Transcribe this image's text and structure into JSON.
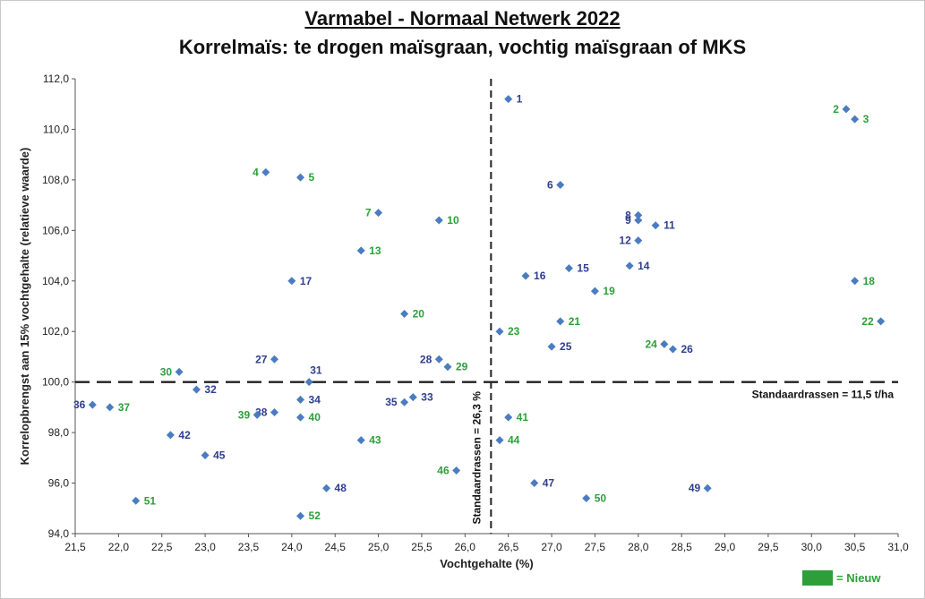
{
  "title": "Varmabel - Normaal Netwerk 2022",
  "subtitle": "Korrelmaïs: te drogen maïsgraan, vochtig maïsgraan of MKS",
  "legend": {
    "label": "= Nieuw",
    "color": "#2e9e3a"
  },
  "colors": {
    "marker": "#4a7cc0",
    "label_existing": "#2f3e8f",
    "label_new": "#2e9e3a",
    "refline": "#222222"
  },
  "annotations": {
    "yield_ref": "Standaardrassen = 11,5 t/ha",
    "moisture_ref": "Standaardrassen = 26,3 %"
  },
  "chart_data": {
    "type": "scatter",
    "xlabel": "Vochtgehalte (%)",
    "ylabel": "Korrelopbrengst aan 15% vochtgehalte (relatieve waarde)",
    "xlim": [
      21.5,
      31.0
    ],
    "ylim": [
      94.0,
      112.0
    ],
    "x_ticks": [
      "21,5",
      "22,0",
      "22,5",
      "23,0",
      "23,5",
      "24,0",
      "24,5",
      "25,0",
      "25,5",
      "26,0",
      "26,5",
      "27,0",
      "27,5",
      "28,0",
      "28,5",
      "29,0",
      "29,5",
      "30,0",
      "30,5",
      "31,0"
    ],
    "y_ticks": [
      "94,0",
      "96,0",
      "98,0",
      "100,0",
      "102,0",
      "104,0",
      "106,0",
      "108,0",
      "110,0",
      "112,0"
    ],
    "ref_x": 26.3,
    "ref_y": 100.0,
    "grid": false,
    "points": [
      {
        "label": "1",
        "x": 26.5,
        "y": 111.2,
        "new": false
      },
      {
        "label": "2",
        "x": 30.4,
        "y": 110.8,
        "new": true
      },
      {
        "label": "3",
        "x": 30.5,
        "y": 110.4,
        "new": true
      },
      {
        "label": "4",
        "x": 23.7,
        "y": 108.3,
        "new": true
      },
      {
        "label": "5",
        "x": 24.1,
        "y": 108.1,
        "new": true
      },
      {
        "label": "6",
        "x": 27.1,
        "y": 107.8,
        "new": false
      },
      {
        "label": "7",
        "x": 25.0,
        "y": 106.7,
        "new": true
      },
      {
        "label": "8",
        "x": 28.0,
        "y": 106.6,
        "new": false
      },
      {
        "label": "9",
        "x": 28.0,
        "y": 106.4,
        "new": false
      },
      {
        "label": "10",
        "x": 25.7,
        "y": 106.4,
        "new": true
      },
      {
        "label": "11",
        "x": 28.2,
        "y": 106.2,
        "new": false
      },
      {
        "label": "12",
        "x": 28.0,
        "y": 105.6,
        "new": false
      },
      {
        "label": "13",
        "x": 24.8,
        "y": 105.2,
        "new": true
      },
      {
        "label": "14",
        "x": 27.9,
        "y": 104.6,
        "new": false
      },
      {
        "label": "15",
        "x": 27.2,
        "y": 104.5,
        "new": false
      },
      {
        "label": "16",
        "x": 26.7,
        "y": 104.2,
        "new": false
      },
      {
        "label": "17",
        "x": 24.0,
        "y": 104.0,
        "new": false
      },
      {
        "label": "18",
        "x": 30.5,
        "y": 104.0,
        "new": true
      },
      {
        "label": "19",
        "x": 27.5,
        "y": 103.6,
        "new": true
      },
      {
        "label": "20",
        "x": 25.3,
        "y": 102.7,
        "new": true
      },
      {
        "label": "21",
        "x": 27.1,
        "y": 102.4,
        "new": true
      },
      {
        "label": "22",
        "x": 30.8,
        "y": 102.4,
        "new": true
      },
      {
        "label": "23",
        "x": 26.4,
        "y": 102.0,
        "new": true
      },
      {
        "label": "24",
        "x": 28.3,
        "y": 101.5,
        "new": true
      },
      {
        "label": "25",
        "x": 27.0,
        "y": 101.4,
        "new": false
      },
      {
        "label": "26",
        "x": 28.4,
        "y": 101.3,
        "new": false
      },
      {
        "label": "27",
        "x": 23.8,
        "y": 100.9,
        "new": false
      },
      {
        "label": "28",
        "x": 25.7,
        "y": 100.9,
        "new": false
      },
      {
        "label": "29",
        "x": 25.8,
        "y": 100.6,
        "new": true
      },
      {
        "label": "30",
        "x": 22.7,
        "y": 100.4,
        "new": true
      },
      {
        "label": "31",
        "x": 24.2,
        "y": 100.0,
        "new": false
      },
      {
        "label": "32",
        "x": 22.9,
        "y": 99.7,
        "new": false
      },
      {
        "label": "33",
        "x": 25.4,
        "y": 99.4,
        "new": false
      },
      {
        "label": "34",
        "x": 24.1,
        "y": 99.3,
        "new": false
      },
      {
        "label": "35",
        "x": 25.3,
        "y": 99.2,
        "new": false
      },
      {
        "label": "36",
        "x": 21.7,
        "y": 99.1,
        "new": false
      },
      {
        "label": "37",
        "x": 21.9,
        "y": 99.0,
        "new": true
      },
      {
        "label": "38",
        "x": 23.8,
        "y": 98.8,
        "new": false
      },
      {
        "label": "39",
        "x": 23.6,
        "y": 98.7,
        "new": true
      },
      {
        "label": "40",
        "x": 24.1,
        "y": 98.6,
        "new": true
      },
      {
        "label": "41",
        "x": 26.5,
        "y": 98.6,
        "new": true
      },
      {
        "label": "42",
        "x": 22.6,
        "y": 97.9,
        "new": false
      },
      {
        "label": "43",
        "x": 24.8,
        "y": 97.7,
        "new": true
      },
      {
        "label": "44",
        "x": 26.4,
        "y": 97.7,
        "new": true
      },
      {
        "label": "45",
        "x": 23.0,
        "y": 97.1,
        "new": false
      },
      {
        "label": "46",
        "x": 25.9,
        "y": 96.5,
        "new": true
      },
      {
        "label": "47",
        "x": 26.8,
        "y": 96.0,
        "new": false
      },
      {
        "label": "48",
        "x": 24.4,
        "y": 95.8,
        "new": false
      },
      {
        "label": "49",
        "x": 28.8,
        "y": 95.8,
        "new": false
      },
      {
        "label": "50",
        "x": 27.4,
        "y": 95.4,
        "new": true
      },
      {
        "label": "51",
        "x": 22.2,
        "y": 95.3,
        "new": true
      },
      {
        "label": "52",
        "x": 24.1,
        "y": 94.7,
        "new": true
      }
    ]
  }
}
